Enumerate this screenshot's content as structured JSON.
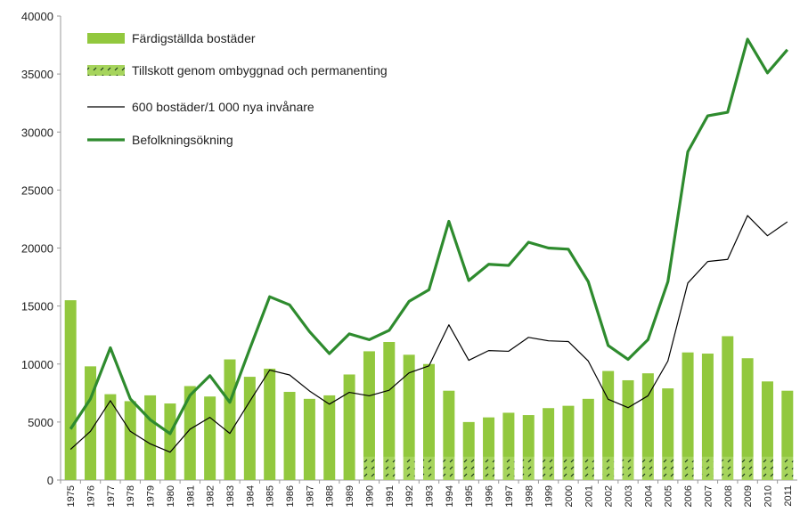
{
  "chart_data": {
    "type": "bar_line",
    "categories": [
      "1975",
      "1976",
      "1977",
      "1978",
      "1979",
      "1980",
      "1981",
      "1982",
      "1983",
      "1984",
      "1985",
      "1986",
      "1987",
      "1988",
      "1989",
      "1990",
      "1991",
      "1992",
      "1993",
      "1994",
      "1995",
      "1996",
      "1997",
      "1998",
      "1999",
      "2000",
      "2001",
      "2002",
      "2003",
      "2004",
      "2005",
      "2006",
      "2007",
      "2008",
      "2009",
      "2010",
      "2011"
    ],
    "series": [
      {
        "name": "Tillskott genom ombyggnad och permanenting",
        "kind": "bar",
        "hatch": true,
        "color": "#a6d45c",
        "values": [
          null,
          null,
          null,
          null,
          null,
          null,
          null,
          null,
          null,
          null,
          null,
          null,
          null,
          null,
          null,
          2000,
          2000,
          2000,
          2000,
          2000,
          2000,
          2000,
          2000,
          2000,
          2000,
          2000,
          2000,
          2000,
          2000,
          2000,
          2000,
          2000,
          2000,
          2000,
          2000,
          2000,
          2000
        ]
      },
      {
        "name": "Färdigställda bostäder",
        "kind": "bar",
        "color": "#92c83e",
        "values": [
          15500,
          9800,
          7400,
          6800,
          7300,
          6600,
          8100,
          7200,
          10400,
          8900,
          9600,
          7600,
          7000,
          7300,
          9100,
          9100,
          9900,
          8800,
          8000,
          5700,
          3000,
          3400,
          3800,
          3600,
          4200,
          4400,
          5000,
          7400,
          6600,
          7200,
          5900,
          9000,
          8900,
          10400,
          8500,
          6500,
          5700
        ]
      },
      {
        "name": "600 bostäder/1 000 nya invånare",
        "kind": "line",
        "line_width": 1.2,
        "color": "#000000",
        "values": [
          2640,
          4200,
          6840,
          4200,
          3120,
          2400,
          4380,
          5400,
          4020,
          6780,
          9480,
          9060,
          7680,
          6540,
          7560,
          7260,
          7740,
          9240,
          9840,
          13380,
          10320,
          11160,
          11100,
          12300,
          12000,
          11940,
          10260,
          6960,
          6240,
          7260,
          10260,
          16980,
          18840,
          19020,
          22800,
          21060,
          22260
        ]
      },
      {
        "name": "Befolkningsökning",
        "kind": "line",
        "line_width": 3.2,
        "color": "#2e8b2e",
        "values": [
          4400,
          7000,
          11400,
          7000,
          5200,
          4000,
          7300,
          9000,
          6700,
          11300,
          15800,
          15100,
          12800,
          10900,
          12600,
          12100,
          12900,
          15400,
          16400,
          22300,
          17200,
          18600,
          18500,
          20500,
          20000,
          19900,
          17100,
          11600,
          10400,
          12100,
          17100,
          28300,
          31400,
          31700,
          38000,
          35100,
          37100
        ]
      }
    ],
    "ylim": [
      0,
      40000
    ],
    "yticks": [
      0,
      5000,
      10000,
      15000,
      20000,
      25000,
      30000,
      35000,
      40000
    ]
  }
}
